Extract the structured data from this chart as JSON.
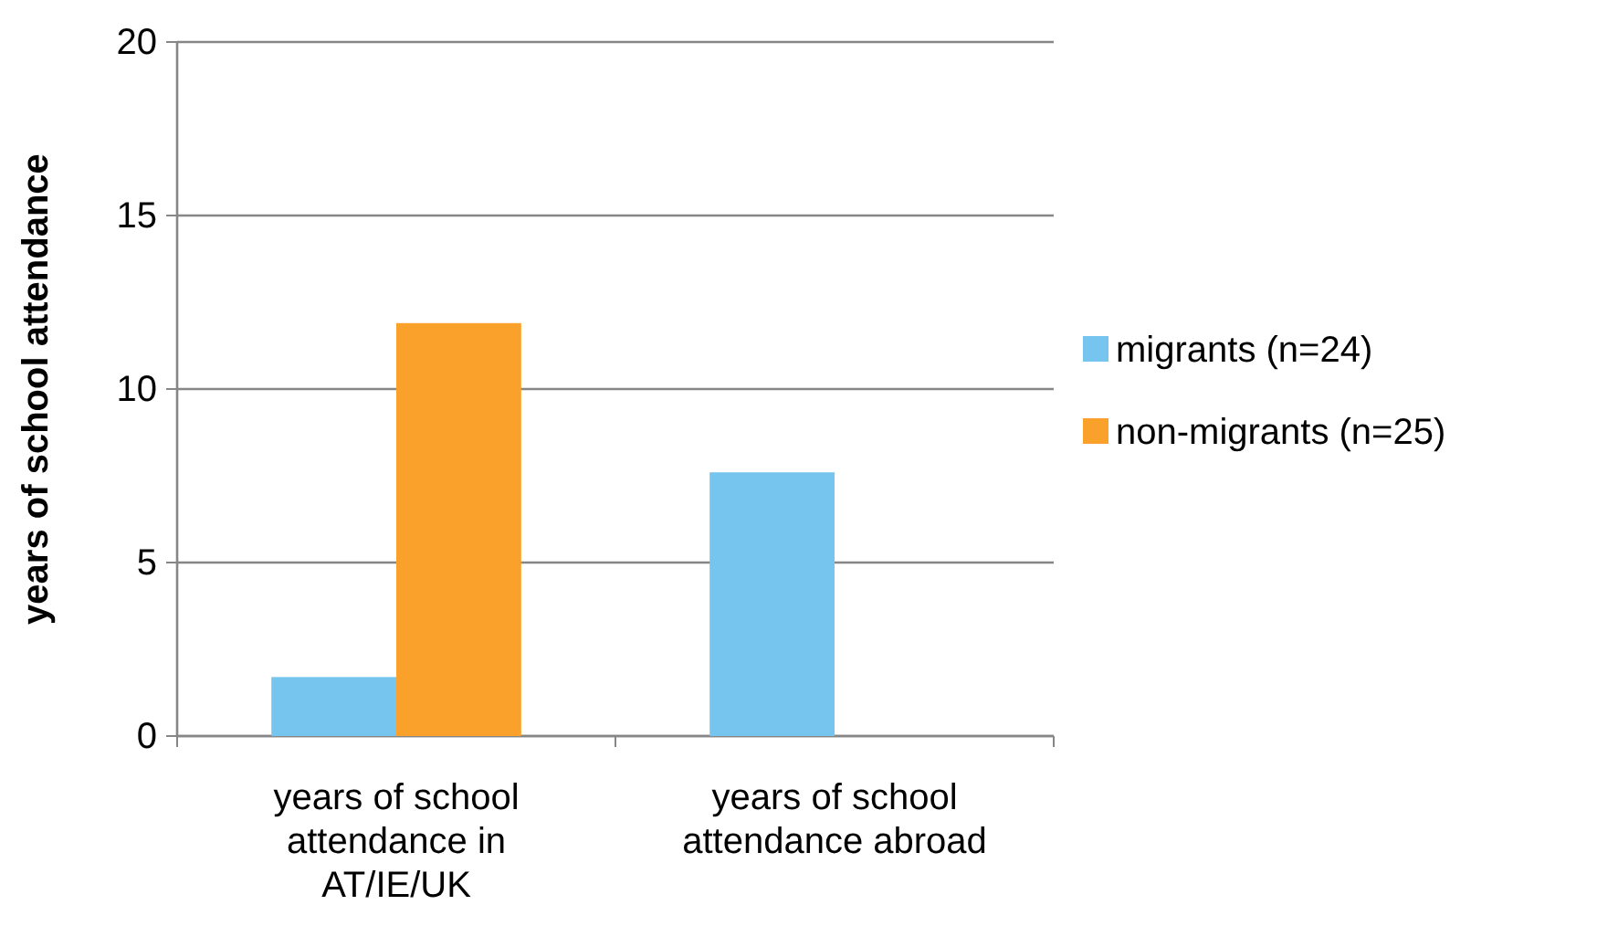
{
  "chart_data": {
    "type": "bar",
    "ylabel": "years of school attendance",
    "categories": [
      "years of school attendance in AT/IE/UK",
      "years of school attendance abroad"
    ],
    "series": [
      {
        "name": "migrants (n=24)",
        "color": "#75c5ee",
        "values": [
          1.7,
          7.6
        ]
      },
      {
        "name": "non-migrants (n=25)",
        "color": "#f9a12a",
        "values": [
          11.9,
          0
        ]
      }
    ],
    "ylim": [
      0,
      20
    ],
    "yticks": [
      0,
      5,
      10,
      15,
      20
    ],
    "grid": "y",
    "legend": "right"
  }
}
